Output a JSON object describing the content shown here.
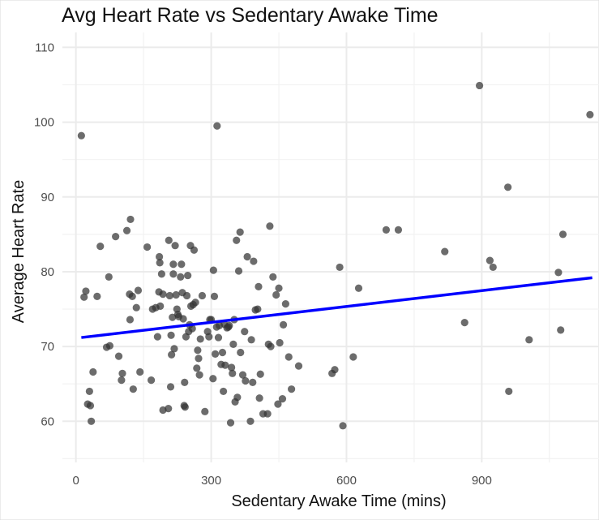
{
  "chart_data": {
    "type": "scatter",
    "title": "Avg Heart Rate vs Sedentary Awake Time",
    "xlabel": "Sedentary Awake Time (mins)",
    "ylabel": "Average Heart Rate",
    "xlim": [
      -30,
      1160
    ],
    "ylim": [
      54.5,
      112
    ],
    "x_ticks": [
      0,
      300,
      600,
      900
    ],
    "y_ticks": [
      60,
      70,
      80,
      90,
      100,
      110
    ],
    "grid": true,
    "legend": "none",
    "point_color": "#333333",
    "line_color": "#0000ff",
    "trend_line": {
      "x": [
        12,
        1145
      ],
      "y": [
        71.2,
        79.2
      ]
    },
    "points": [
      [
        12,
        98.2
      ],
      [
        18,
        76.6
      ],
      [
        22,
        77.4
      ],
      [
        26,
        62.3
      ],
      [
        30,
        64.0
      ],
      [
        32,
        62.1
      ],
      [
        34,
        60.0
      ],
      [
        38,
        66.6
      ],
      [
        47,
        76.7
      ],
      [
        54,
        83.4
      ],
      [
        68,
        69.9
      ],
      [
        73,
        79.3
      ],
      [
        75,
        70.1
      ],
      [
        88,
        84.7
      ],
      [
        95,
        68.7
      ],
      [
        101,
        65.5
      ],
      [
        103,
        66.4
      ],
      [
        113,
        85.5
      ],
      [
        119,
        77.0
      ],
      [
        120,
        73.6
      ],
      [
        121,
        87.0
      ],
      [
        125,
        76.7
      ],
      [
        127,
        64.3
      ],
      [
        134,
        75.2
      ],
      [
        138,
        77.5
      ],
      [
        142,
        66.6
      ],
      [
        158,
        83.3
      ],
      [
        167,
        65.5
      ],
      [
        170,
        75.0
      ],
      [
        177,
        75.2
      ],
      [
        181,
        71.3
      ],
      [
        184,
        77.3
      ],
      [
        185,
        82.0
      ],
      [
        186,
        81.2
      ],
      [
        187,
        75.4
      ],
      [
        190,
        79.7
      ],
      [
        193,
        77.0
      ],
      [
        193,
        61.5
      ],
      [
        205,
        61.7
      ],
      [
        206,
        84.2
      ],
      [
        208,
        76.8
      ],
      [
        210,
        64.6
      ],
      [
        211,
        71.5
      ],
      [
        212,
        68.9
      ],
      [
        214,
        73.9
      ],
      [
        216,
        81.0
      ],
      [
        216,
        79.7
      ],
      [
        218,
        69.7
      ],
      [
        220,
        83.5
      ],
      [
        222,
        76.9
      ],
      [
        224,
        75.0
      ],
      [
        226,
        74.3
      ],
      [
        228,
        74.0
      ],
      [
        232,
        79.3
      ],
      [
        234,
        81.0
      ],
      [
        236,
        77.2
      ],
      [
        238,
        73.7
      ],
      [
        240,
        62.1
      ],
      [
        241,
        65.2
      ],
      [
        242,
        61.9
      ],
      [
        244,
        71.3
      ],
      [
        246,
        76.8
      ],
      [
        248,
        79.5
      ],
      [
        250,
        72.0
      ],
      [
        252,
        72.9
      ],
      [
        254,
        83.5
      ],
      [
        255,
        75.4
      ],
      [
        258,
        72.4
      ],
      [
        260,
        75.6
      ],
      [
        262,
        82.9
      ],
      [
        265,
        75.9
      ],
      [
        268,
        67.1
      ],
      [
        270,
        69.5
      ],
      [
        272,
        68.4
      ],
      [
        274,
        66.2
      ],
      [
        276,
        71.0
      ],
      [
        280,
        76.8
      ],
      [
        286,
        61.3
      ],
      [
        292,
        72.0
      ],
      [
        295,
        71.3
      ],
      [
        297,
        73.6
      ],
      [
        300,
        73.6
      ],
      [
        304,
        65.7
      ],
      [
        305,
        80.2
      ],
      [
        307,
        76.7
      ],
      [
        309,
        69.0
      ],
      [
        312,
        72.6
      ],
      [
        313,
        99.5
      ],
      [
        316,
        71.2
      ],
      [
        318,
        72.8
      ],
      [
        322,
        67.6
      ],
      [
        325,
        69.2
      ],
      [
        327,
        64.0
      ],
      [
        329,
        73.0
      ],
      [
        331,
        67.5
      ],
      [
        335,
        72.5
      ],
      [
        338,
        72.6
      ],
      [
        340,
        72.8
      ],
      [
        343,
        59.8
      ],
      [
        345,
        67.2
      ],
      [
        347,
        66.4
      ],
      [
        349,
        70.3
      ],
      [
        351,
        73.6
      ],
      [
        353,
        62.6
      ],
      [
        356,
        84.2
      ],
      [
        358,
        63.2
      ],
      [
        361,
        80.1
      ],
      [
        364,
        85.3
      ],
      [
        365,
        69.2
      ],
      [
        370,
        66.2
      ],
      [
        374,
        72.0
      ],
      [
        376,
        65.4
      ],
      [
        380,
        82.0
      ],
      [
        387,
        60.0
      ],
      [
        389,
        70.9
      ],
      [
        392,
        65.2
      ],
      [
        394,
        81.4
      ],
      [
        398,
        74.9
      ],
      [
        403,
        75.0
      ],
      [
        405,
        78.0
      ],
      [
        407,
        63.1
      ],
      [
        409,
        66.3
      ],
      [
        415,
        61.0
      ],
      [
        425,
        61.0
      ],
      [
        427,
        70.3
      ],
      [
        430,
        86.1
      ],
      [
        432,
        70.0
      ],
      [
        437,
        79.3
      ],
      [
        444,
        76.9
      ],
      [
        448,
        62.3
      ],
      [
        450,
        77.8
      ],
      [
        452,
        70.5
      ],
      [
        458,
        63.0
      ],
      [
        460,
        72.9
      ],
      [
        465,
        75.7
      ],
      [
        472,
        68.6
      ],
      [
        478,
        64.3
      ],
      [
        494,
        67.4
      ],
      [
        568,
        66.4
      ],
      [
        574,
        66.9
      ],
      [
        585,
        80.6
      ],
      [
        592,
        59.4
      ],
      [
        615,
        68.6
      ],
      [
        627,
        77.8
      ],
      [
        688,
        85.6
      ],
      [
        715,
        85.6
      ],
      [
        818,
        82.7
      ],
      [
        862,
        73.2
      ],
      [
        895,
        104.9
      ],
      [
        918,
        81.5
      ],
      [
        925,
        80.6
      ],
      [
        958,
        91.3
      ],
      [
        960,
        64.0
      ],
      [
        1005,
        70.9
      ],
      [
        1070,
        79.9
      ],
      [
        1075,
        72.2
      ],
      [
        1080,
        85.0
      ],
      [
        1140,
        101.0
      ]
    ]
  }
}
